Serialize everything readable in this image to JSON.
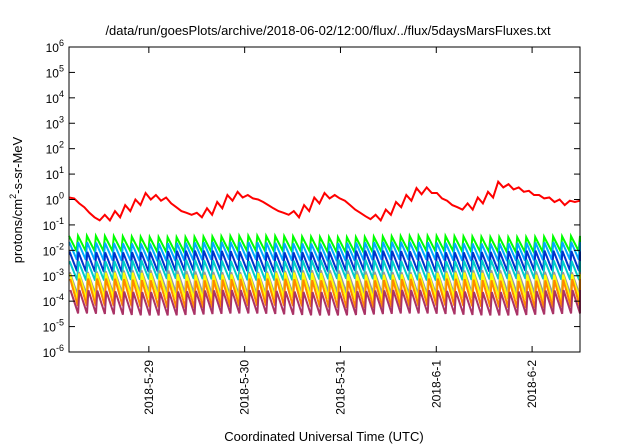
{
  "chart_data": {
    "type": "line",
    "title": "/data/run/goesPlots/archive/2018-06-02/12:00/flux/../flux/5daysMarsFluxes.txt",
    "xlabel": "Coordinated Universal Time (UTC)",
    "ylabel": {
      "prefix": "protons/cm",
      "sup": "2",
      "suffix": "-s-sr-MeV"
    },
    "yscale": "log",
    "ylim": [
      1e-06,
      1000000.0
    ],
    "xlim": [
      "2018-05-28 04:00",
      "2018-06-02 12:00"
    ],
    "grid": false,
    "legend": "none",
    "y_ticks": [
      {
        "value": 1e-06,
        "base": "10",
        "exp": "-6"
      },
      {
        "value": 1e-05,
        "base": "10",
        "exp": "-5"
      },
      {
        "value": 0.0001,
        "base": "10",
        "exp": "-4"
      },
      {
        "value": 0.001,
        "base": "10",
        "exp": "-3"
      },
      {
        "value": 0.01,
        "base": "10",
        "exp": "-2"
      },
      {
        "value": 0.1,
        "base": "10",
        "exp": "-1"
      },
      {
        "value": 1,
        "base": "10",
        "exp": "0"
      },
      {
        "value": 10,
        "base": "10",
        "exp": "1"
      },
      {
        "value": 100,
        "base": "10",
        "exp": "2"
      },
      {
        "value": 1000,
        "base": "10",
        "exp": "3"
      },
      {
        "value": 10000,
        "base": "10",
        "exp": "4"
      },
      {
        "value": 100000,
        "base": "10",
        "exp": "5"
      },
      {
        "value": 1000000,
        "base": "10",
        "exp": "6"
      }
    ],
    "x_ticks": [
      {
        "date": "2018-05-29 00:00",
        "label": "2018-5-29"
      },
      {
        "date": "2018-05-30 00:00",
        "label": "2018-5-30"
      },
      {
        "date": "2018-05-31 00:00",
        "label": "2018-5-31"
      },
      {
        "date": "2018-06-01 00:00",
        "label": "2018-6-1"
      },
      {
        "date": "2018-06-02 00:00",
        "label": "2018-6-2"
      }
    ],
    "series": [
      {
        "color": "#ff0000",
        "y": [
          1.2,
          1.1,
          0.7,
          0.5,
          0.3,
          0.2,
          0.15,
          0.25,
          0.15,
          0.35,
          0.2,
          0.6,
          0.35,
          1.0,
          0.6,
          1.8,
          1.0,
          1.5,
          0.9,
          1.2,
          0.7,
          0.5,
          0.35,
          0.3,
          0.25,
          0.3,
          0.2,
          0.45,
          0.25,
          0.8,
          0.45,
          1.5,
          0.9,
          2.0,
          1.2,
          1.5,
          1.1,
          1.0,
          0.8,
          0.6,
          0.45,
          0.35,
          0.3,
          0.25,
          0.35,
          0.2,
          0.6,
          0.35,
          1.2,
          0.7,
          1.8,
          1.1,
          1.5,
          1.1,
          0.9,
          0.6,
          0.4,
          0.3,
          0.22,
          0.17,
          0.25,
          0.15,
          0.4,
          0.25,
          0.8,
          0.5,
          1.5,
          0.9,
          2.8,
          1.6,
          3.0,
          1.8,
          1.8,
          1.1,
          0.9,
          0.6,
          0.5,
          0.4,
          0.7,
          0.4,
          1.2,
          0.7,
          2.0,
          1.2,
          5.0,
          3.0,
          4.0,
          2.5,
          3.0,
          2.0,
          2.2,
          1.5,
          1.5,
          1.1,
          1.2,
          0.8,
          1.0,
          0.6,
          0.9,
          0.8,
          0.9
        ]
      },
      {
        "color": "#00ff00",
        "min": 0.009,
        "max": 0.035,
        "phase": 0.0
      },
      {
        "color": "#00aaff",
        "min": 0.004,
        "max": 0.02,
        "phase": 0.1
      },
      {
        "color": "#0033cc",
        "min": 0.0015,
        "max": 0.009,
        "phase": 0.2
      },
      {
        "color": "#00cccc",
        "min": 0.0007,
        "max": 0.004,
        "phase": 0.3
      },
      {
        "color": "#999999",
        "min": 0.0002,
        "max": 0.0015,
        "phase": 0.45
      },
      {
        "color": "#ffff00",
        "min": 0.00012,
        "max": 0.0012,
        "phase": 0.55
      },
      {
        "color": "#ff8800",
        "min": 6e-05,
        "max": 0.0007,
        "phase": 0.65
      },
      {
        "color": "#aa3366",
        "min": 3e-05,
        "max": 0.00025,
        "phase": 0.8
      }
    ]
  }
}
